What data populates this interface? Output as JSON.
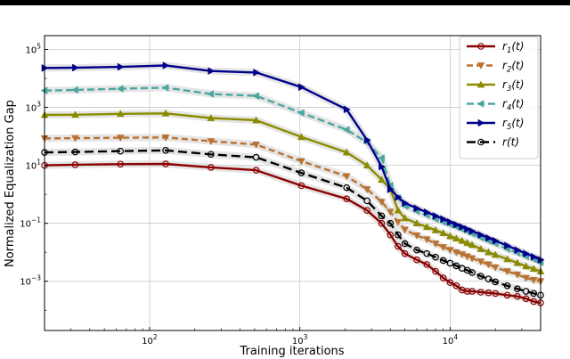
{
  "chart_data": {
    "type": "line",
    "title": "",
    "xlabel": "Training iterations",
    "ylabel": "Normalized Equalization Gap",
    "xscale": "log",
    "yscale": "log",
    "xlim": [
      20,
      40000
    ],
    "ylim": [
      2e-05,
      300000
    ],
    "grid": true,
    "legend_position": "top-right",
    "x_ticks": [
      {
        "value": 100,
        "base": "10",
        "exp": "2"
      },
      {
        "value": 1000,
        "base": "10",
        "exp": "3"
      },
      {
        "value": 10000,
        "base": "10",
        "exp": "4"
      }
    ],
    "y_ticks": [
      {
        "value": 0.001,
        "base": "10",
        "exp": "−3"
      },
      {
        "value": 0.1,
        "base": "10",
        "exp": "−1"
      },
      {
        "value": 10,
        "base": "10",
        "exp": "1"
      },
      {
        "value": 1000,
        "base": "10",
        "exp": "3"
      },
      {
        "value": 100000,
        "base": "10",
        "exp": "5"
      }
    ],
    "x": [
      20,
      32,
      64,
      128,
      256,
      512,
      1024,
      2048,
      2800,
      3500,
      4000,
      4500,
      5000,
      6000,
      7000,
      8000,
      9000,
      10000,
      11000,
      12000,
      13000,
      14000,
      16000,
      18000,
      20000,
      24000,
      28000,
      32000,
      36000,
      40000
    ],
    "series": [
      {
        "name": "r",
        "sub": "1",
        "arg": "(t)",
        "color": "#8b0000",
        "dash": "",
        "marker": "circle",
        "values": [
          10,
          10.5,
          11,
          11.2,
          8.5,
          6.8,
          2.0,
          0.7,
          0.28,
          0.1,
          0.04,
          0.016,
          0.009,
          0.0055,
          0.0038,
          0.0022,
          0.0013,
          0.0009,
          0.0007,
          0.0005,
          0.00045,
          0.00045,
          0.00042,
          0.0004,
          0.00038,
          0.00033,
          0.0003,
          0.00025,
          0.0002,
          0.00018
        ]
      },
      {
        "name": "r",
        "sub": "2",
        "arg": "(t)",
        "color": "#b87333",
        "dash": "7,4",
        "marker": "triangle-down",
        "values": [
          85,
          87,
          90,
          92,
          68,
          52,
          14,
          4.2,
          1.5,
          0.55,
          0.25,
          0.11,
          0.06,
          0.038,
          0.028,
          0.02,
          0.015,
          0.012,
          0.01,
          0.0085,
          0.0072,
          0.0062,
          0.0048,
          0.0038,
          0.003,
          0.0022,
          0.0017,
          0.0013,
          0.0011,
          0.001
        ]
      },
      {
        "name": "r",
        "sub": "3",
        "arg": "(t)",
        "color": "#8b8b00",
        "dash": "",
        "marker": "triangle-up",
        "values": [
          550,
          560,
          600,
          620,
          430,
          360,
          95,
          28,
          10,
          3.2,
          1.5,
          0.28,
          0.15,
          0.1,
          0.075,
          0.058,
          0.046,
          0.036,
          0.03,
          0.025,
          0.021,
          0.018,
          0.013,
          0.01,
          0.0082,
          0.0058,
          0.0043,
          0.0033,
          0.0027,
          0.0022
        ]
      },
      {
        "name": "r",
        "sub": "4",
        "arg": "(t)",
        "color": "#4ca6a0",
        "dash": "8,4",
        "marker": "triangle-left",
        "values": [
          3800,
          4000,
          4400,
          4800,
          2900,
          2500,
          650,
          170,
          62,
          18,
          2.0,
          0.75,
          0.4,
          0.26,
          0.19,
          0.14,
          0.11,
          0.09,
          0.075,
          0.062,
          0.052,
          0.044,
          0.032,
          0.025,
          0.02,
          0.013,
          0.0095,
          0.0072,
          0.0057,
          0.0045
        ]
      },
      {
        "name": "r",
        "sub": "5",
        "arg": "(t)",
        "color": "#00008b",
        "dash": "",
        "marker": "triangle-right",
        "values": [
          23000,
          23500,
          25000,
          28000,
          18000,
          16000,
          5000,
          850,
          75,
          9,
          1.5,
          0.8,
          0.5,
          0.33,
          0.24,
          0.18,
          0.14,
          0.11,
          0.09,
          0.075,
          0.063,
          0.054,
          0.04,
          0.031,
          0.025,
          0.017,
          0.012,
          0.009,
          0.007,
          0.0055
        ]
      },
      {
        "name": "r",
        "sub": "",
        "arg": "(t)",
        "color": "#000000",
        "dash": "10,5",
        "marker": "circle",
        "values": [
          28,
          29,
          31,
          33,
          24,
          19,
          5.5,
          1.7,
          0.6,
          0.18,
          0.1,
          0.04,
          0.02,
          0.012,
          0.009,
          0.0068,
          0.0052,
          0.0042,
          0.0034,
          0.0028,
          0.0024,
          0.002,
          0.0015,
          0.0012,
          0.00095,
          0.0007,
          0.00055,
          0.00045,
          0.00038,
          0.00033
        ]
      }
    ]
  }
}
